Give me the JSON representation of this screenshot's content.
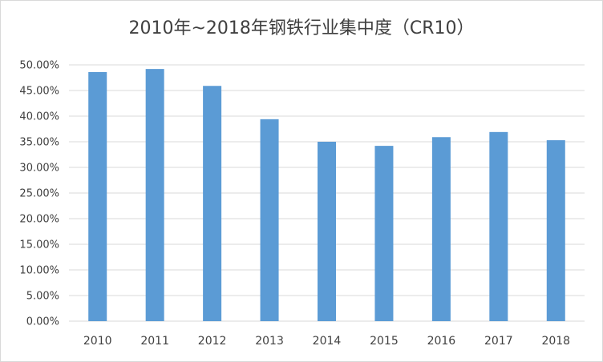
{
  "chart_data": {
    "type": "bar",
    "title": "2010年~2018年钢铁行业集中度（CR10）",
    "categories": [
      "2010",
      "2011",
      "2012",
      "2013",
      "2014",
      "2015",
      "2016",
      "2017",
      "2018"
    ],
    "values": [
      48.6,
      49.2,
      45.9,
      39.4,
      35.0,
      34.2,
      35.9,
      36.9,
      35.3
    ],
    "value_format": "percent",
    "ylim": [
      0,
      50
    ],
    "ytick_step": 5,
    "ytick_labels": [
      "0.00%",
      "5.00%",
      "10.00%",
      "15.00%",
      "20.00%",
      "25.00%",
      "30.00%",
      "35.00%",
      "40.00%",
      "45.00%",
      "50.00%"
    ],
    "grid": true,
    "legend": "none",
    "bar_color": "#5b9bd5",
    "grid_color": "#d9d9d9"
  }
}
